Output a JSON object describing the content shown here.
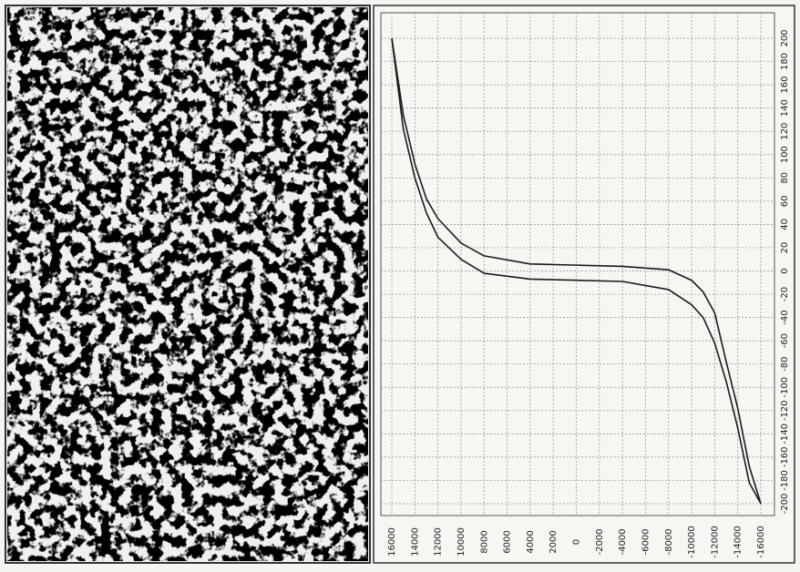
{
  "chart_data": {
    "type": "line",
    "x": [
      16000,
      15000,
      14000,
      13000,
      12000,
      10000,
      8000,
      4000,
      0,
      -4000,
      -8000,
      -10000,
      -11000,
      -12000,
      -13000,
      -14000,
      -15000,
      -16000
    ],
    "series": [
      {
        "color": "#1a1a1a",
        "values": [
          200,
          134,
          92,
          62,
          45,
          24,
          13,
          6,
          5,
          4,
          1,
          -8,
          -18,
          -36,
          -78,
          -118,
          -168,
          -200
        ]
      },
      {
        "color": "#1a1a1a",
        "values": [
          200,
          122,
          80,
          50,
          29,
          10,
          -2,
          -7,
          -8,
          -9,
          -16,
          -29,
          -40,
          -62,
          -95,
          -135,
          -182,
          -200
        ]
      }
    ],
    "xlim": [
      16000,
      -16000
    ],
    "xticks": [
      16000,
      14000,
      12000,
      10000,
      8000,
      6000,
      4000,
      2000,
      0,
      -2000,
      -4000,
      -6000,
      -8000,
      -10000,
      -12000,
      -14000,
      -16000
    ],
    "ylim": [
      -200,
      200
    ],
    "yticks": [
      200,
      180,
      160,
      140,
      120,
      100,
      80,
      60,
      40,
      20,
      0,
      -20,
      -40,
      -60,
      -80,
      -100,
      -120,
      -140,
      -160,
      -180,
      -200
    ],
    "grid": true
  }
}
